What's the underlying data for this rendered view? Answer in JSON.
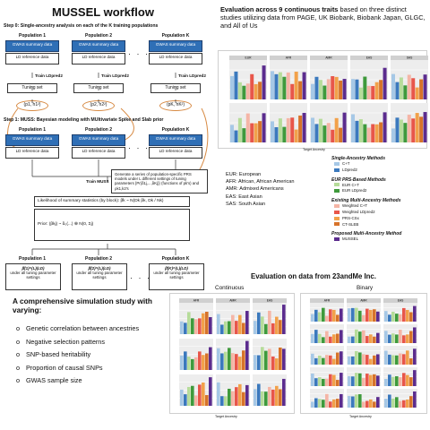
{
  "workflow": {
    "title": "MUSSEL workflow",
    "step0": "Step 0: Single-ancestry analysis on each of the K training populations",
    "step1": "Step 1: MUSS: Bayesian modeling with MUltivariate Spike and Slab prior",
    "pop1": "Population 1",
    "pop2": "Population 2",
    "popK": "Population K",
    "gwas_box": "GWAS summary data",
    "ld_box": "LD reference data",
    "train_ldpred2": "Train LDpred2",
    "tuning_set": "Tuning set",
    "param1": "(p1, h1²)",
    "param2": "(p2, h2²)",
    "paramK": "(pK, hK²)",
    "dots": "· · ·",
    "train_muss": "Train MUSS",
    "generate_text": "Generate a series of population-specific PRS models under L different settings of tuning parameters {Pr(δ1j,...,δKj)} (functions of pk's) and ρk1,k2's",
    "likelihood": "Likelihood of summary statistics (by block):  β̂k ~ N(Dk βk, Dk / Nk)",
    "prior": "Prior:  (βkj) ~ δ₀(...) ⊕ N(0, Σj)",
    "out_text": "under all tuning parameter settings",
    "out_p1": "β̂(1)^(L)(LD)",
    "out_p2": "β̂(2)^(L)(LD)",
    "out_pK": "β̂(K)^(L)(LD)"
  },
  "eval_top": {
    "title_bold": "Evaluation across 9 continuous traits",
    "title_rest": " based on three distinct studies utilizing data from PAGE, UK Biobank, Biobank Japan, GLGC, and All of Us",
    "xlabel": "Target Ancestry",
    "facets": [
      "EUR",
      "AFR",
      "AMR",
      "EAS",
      "SAS"
    ]
  },
  "ancestry_list": [
    "EUR: European",
    "AFR: African, African American",
    "AMR: Admixed Americans",
    "EAS: East Asian",
    "SAS: South Asian"
  ],
  "legend": {
    "groups": [
      {
        "title": "Single-Ancestry Methods",
        "items": [
          {
            "label": "C+T",
            "color": "#a6c8e6"
          },
          {
            "label": "LDpred2",
            "color": "#3b79bd"
          }
        ]
      },
      {
        "title": "EUR PRS-Based Methods",
        "items": [
          {
            "label": "EUR C+T",
            "color": "#b6dc9a"
          },
          {
            "label": "EUR LDpred2",
            "color": "#3f9a3c"
          }
        ]
      },
      {
        "title": "Existing Multi-Ancestry Methods",
        "items": [
          {
            "label": "Weighted C+T",
            "color": "#f5b5a6"
          },
          {
            "label": "Weighted LDpred2",
            "color": "#e8564a"
          },
          {
            "label": "PRS-CSx",
            "color": "#f2a14a"
          },
          {
            "label": "CT-SLEB",
            "color": "#d7732a"
          }
        ]
      },
      {
        "title": "Proposed Multi-Ancestry Method",
        "items": [
          {
            "label": "MUSSEL",
            "color": "#5b2c8e"
          }
        ]
      }
    ]
  },
  "simulation": {
    "title": "A comprehensive simulation study with varying:",
    "bullets": [
      "Genetic correlation between ancestries",
      "Negative selection patterns",
      "SNP-based heritability",
      "Proportion of causal SNPs",
      "GWAS sample size"
    ]
  },
  "eval_bottom": {
    "title": "Evaluation on data from 23andMe Inc.",
    "continuous": "Continuous",
    "binary": "Binary",
    "xlabel": "Target Ancestry"
  },
  "colors": {
    "blue_box": "#2f6fb6",
    "oval_border": "#d78a43"
  }
}
